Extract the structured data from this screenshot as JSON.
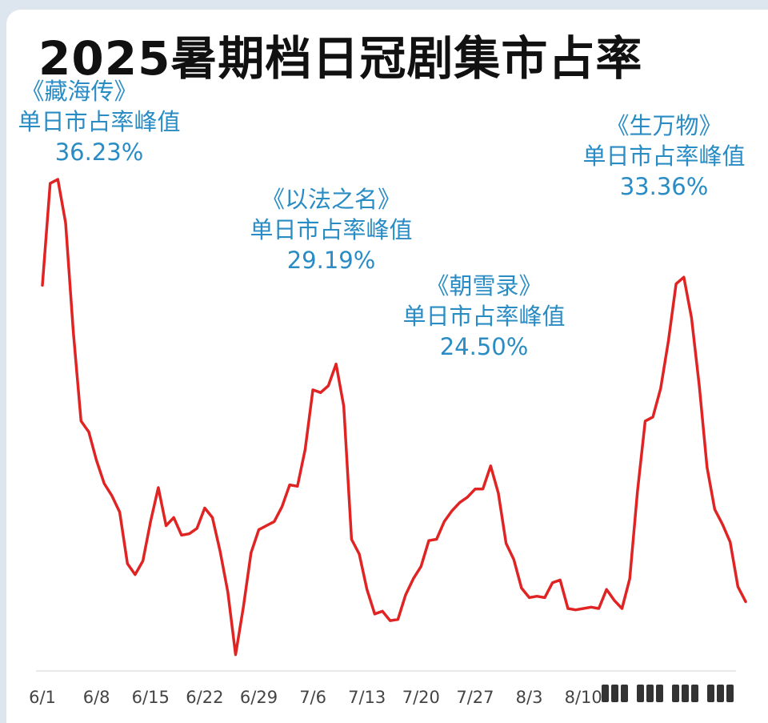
{
  "chart_data": {
    "type": "line",
    "title": "2025暑期档日冠剧集市占率",
    "x_tick_labels": [
      "6/1",
      "6/8",
      "6/15",
      "6/22",
      "6/29",
      "7/6",
      "7/13",
      "7/20",
      "7/27",
      "8/3",
      "8/10"
    ],
    "x_start_date": "6/1",
    "x_step_days": 1,
    "ylim": [
      0,
      40
    ],
    "grid": false,
    "legend": "none",
    "line_color": "#e02424",
    "annotation_color": "#2a8cc4",
    "series": [
      {
        "values": [
          28.4,
          35.9,
          36.2,
          33.0,
          25.0,
          18.4,
          17.6,
          15.5,
          13.8,
          12.9,
          11.7,
          7.9,
          7.1,
          8.1,
          11.0,
          13.5,
          10.7,
          11.3,
          10.0,
          10.1,
          10.5,
          12.0,
          11.3,
          8.8,
          5.8,
          1.2,
          4.7,
          8.7,
          10.4,
          10.7,
          11.0,
          12.1,
          13.7,
          13.6,
          16.3,
          20.7,
          20.5,
          21.0,
          22.6,
          19.5,
          9.7,
          8.6,
          6.0,
          4.2,
          4.4,
          3.7,
          3.8,
          5.6,
          6.8,
          7.7,
          9.6,
          9.7,
          11.0,
          11.8,
          12.4,
          12.8,
          13.4,
          13.4,
          15.1,
          13.1,
          9.4,
          8.2,
          6.1,
          5.4,
          5.5,
          5.4,
          6.5,
          6.7,
          4.6,
          4.5,
          4.6,
          4.7,
          4.6,
          6.0,
          5.2,
          4.6,
          6.8,
          13.2,
          18.4,
          18.7,
          20.8,
          24.3,
          28.5,
          29.0,
          26.0,
          21.0,
          15.0,
          11.9,
          10.8,
          9.5,
          6.2,
          5.1
        ]
      }
    ],
    "annotations": [
      {
        "show": "《藏海传》",
        "label": "单日市占率峰值",
        "value": "36.23%"
      },
      {
        "show": "《以法之名》",
        "label": "单日市占率峰值",
        "value": "29.19%"
      },
      {
        "show": "《朝雪录》",
        "label": "单日市占率峰值",
        "value": "24.50%"
      },
      {
        "show": "《生万物》",
        "label": "单日市占率峰值",
        "value": "33.36%"
      }
    ]
  }
}
